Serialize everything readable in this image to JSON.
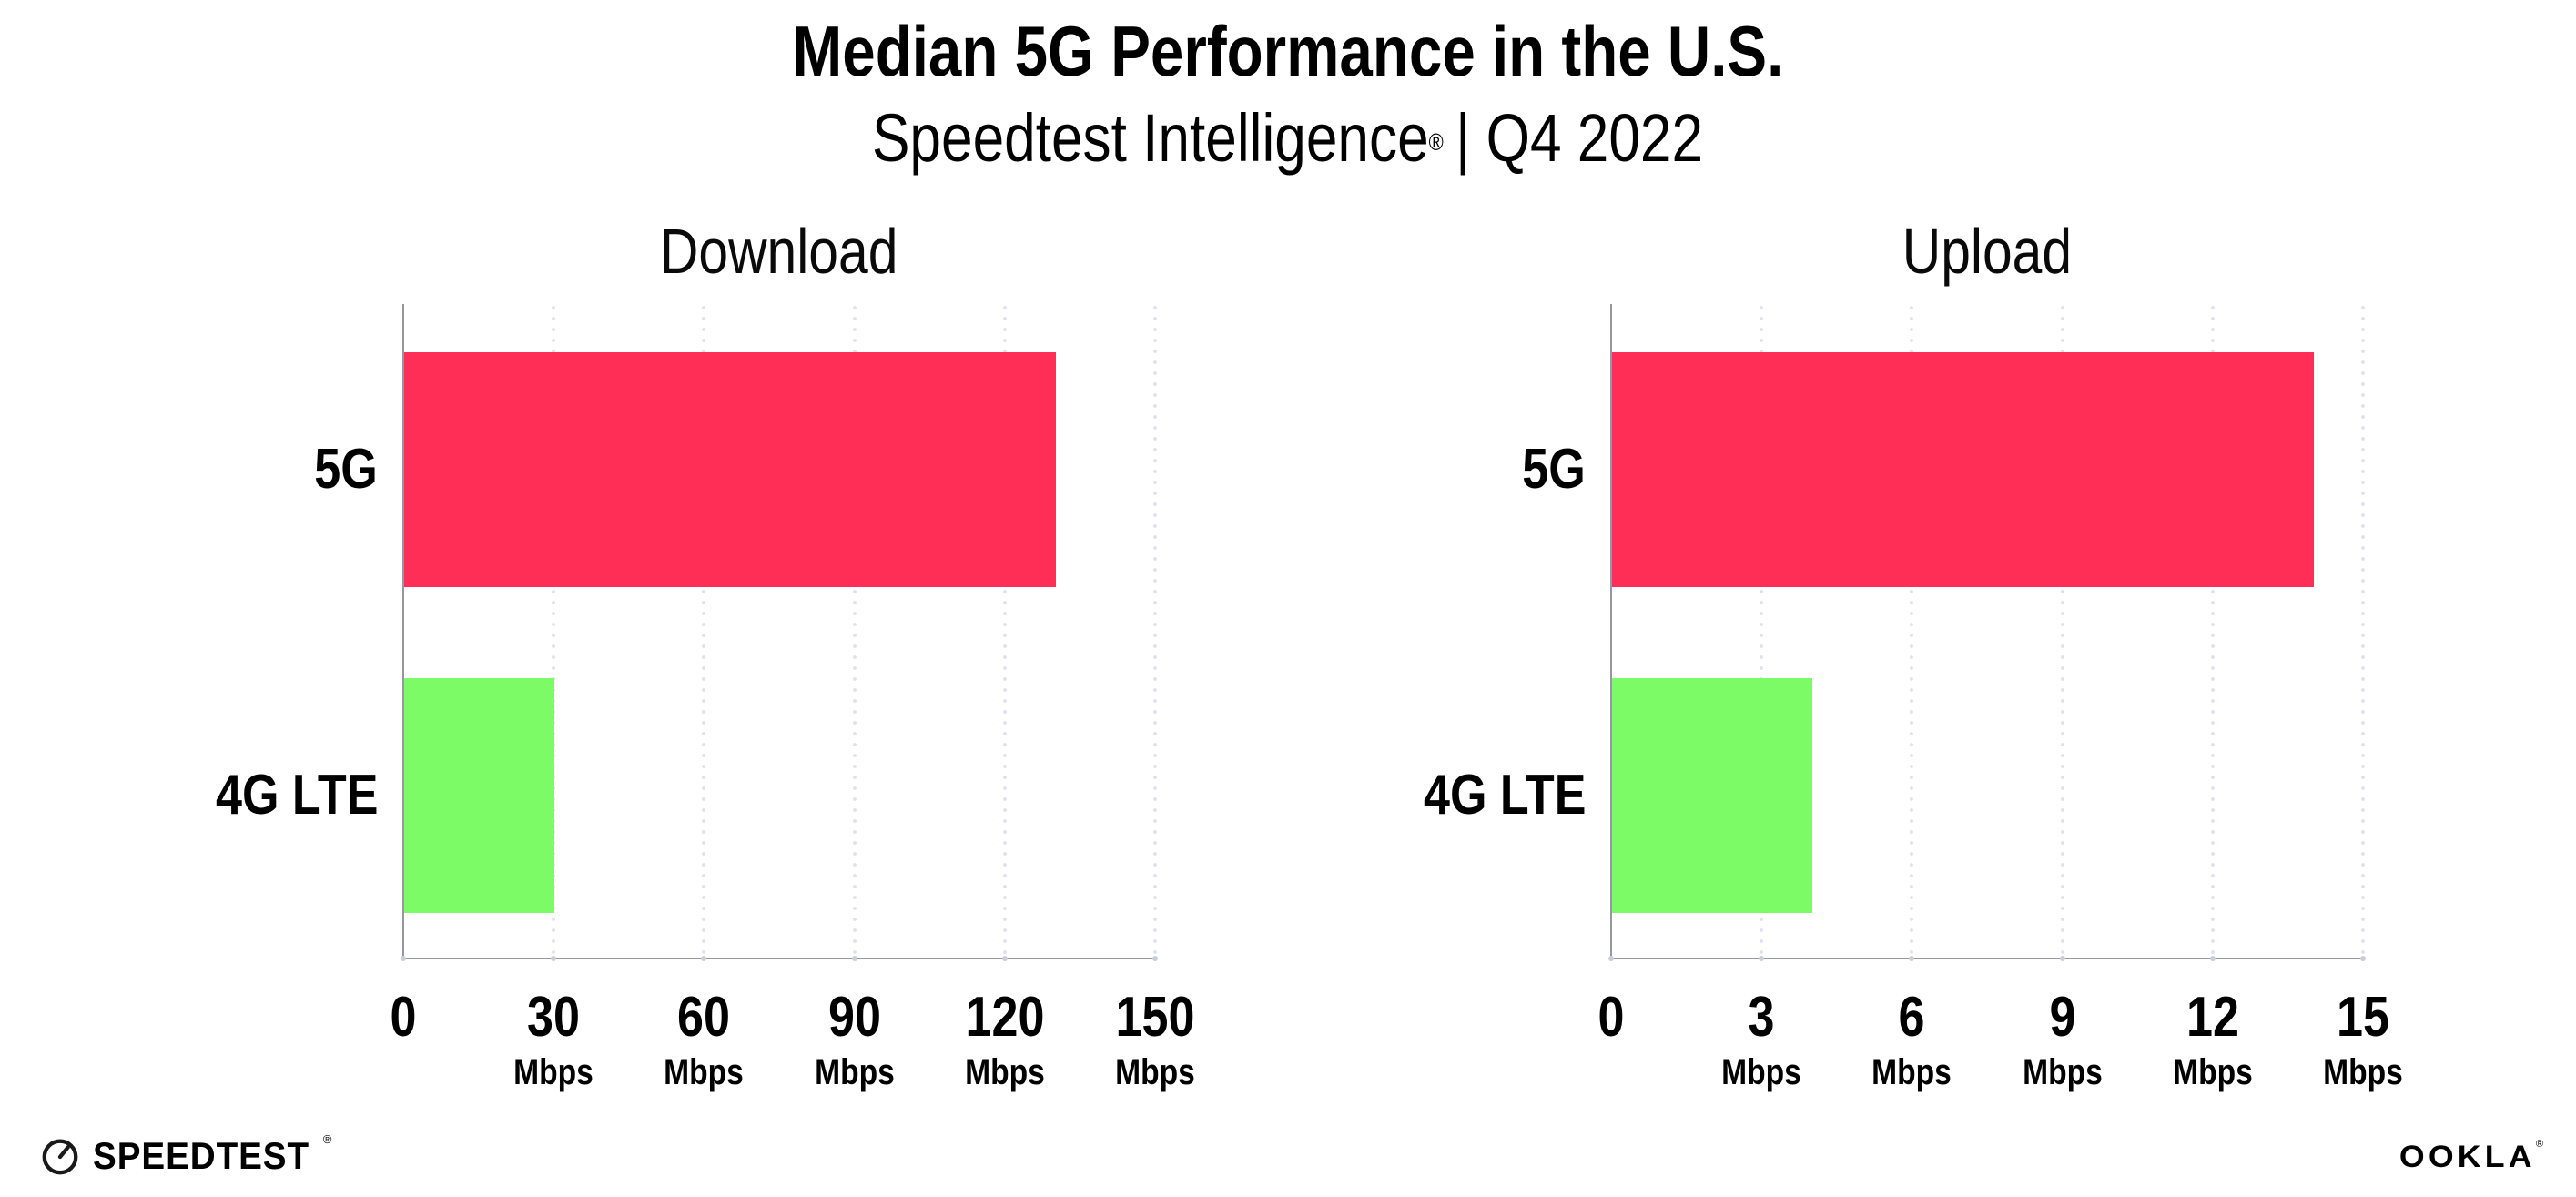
{
  "header": {
    "title": "Median 5G Performance in the U.S.",
    "subtitle_brand": "Speedtest Intelligence",
    "subtitle_registered": "®",
    "subtitle_rest": "| Q4 2022"
  },
  "chart_data": [
    {
      "type": "bar",
      "orientation": "horizontal",
      "title": "Download",
      "categories": [
        "5G",
        "4G LTE"
      ],
      "values": [
        130,
        30
      ],
      "unit": "Mbps",
      "xlim": [
        0,
        150
      ],
      "xticks": [
        0,
        30,
        60,
        90,
        120,
        150
      ],
      "bar_colors": [
        "#ff2e56",
        "#7dfb66"
      ],
      "grid": "dotted-vertical",
      "legend": "none"
    },
    {
      "type": "bar",
      "orientation": "horizontal",
      "title": "Upload",
      "categories": [
        "5G",
        "4G LTE"
      ],
      "values": [
        14,
        4
      ],
      "unit": "Mbps",
      "xlim": [
        0,
        15
      ],
      "xticks": [
        0,
        3,
        6,
        9,
        12,
        15
      ],
      "bar_colors": [
        "#ff2e56",
        "#7dfb66"
      ],
      "grid": "dotted-vertical",
      "legend": "none"
    }
  ],
  "footer": {
    "speedtest_label": "SPEEDTEST",
    "speedtest_mark": "®",
    "ookla_label": "OOKLA",
    "ookla_mark": "®"
  },
  "colors": {
    "bar_5g": "#ff2e56",
    "bar_4g_lte": "#7dfb66",
    "axis": "#97979f",
    "gridline": "#e1e1ee",
    "text": "#000000",
    "background": "#ffffff"
  }
}
